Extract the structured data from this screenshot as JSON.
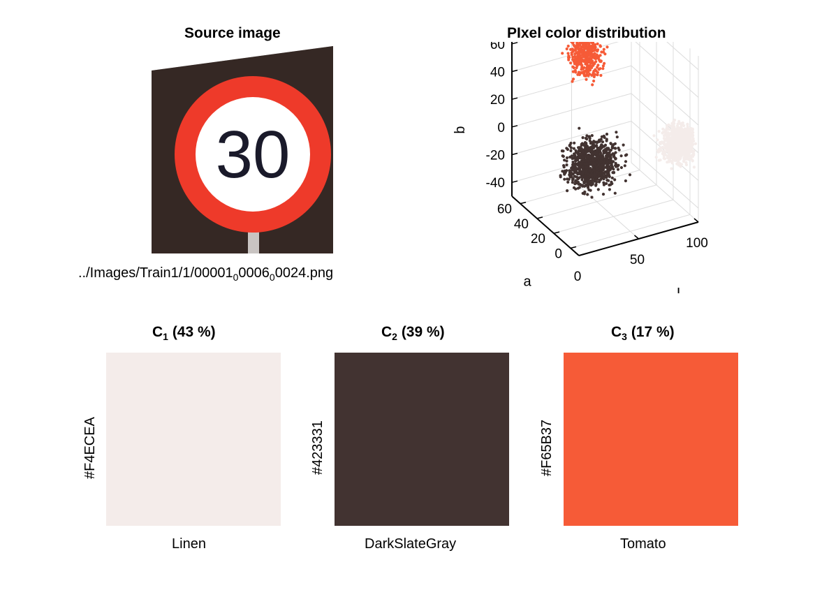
{
  "source_image": {
    "title": "Source image",
    "filename_parts": [
      "../Images/Train1/1/00001",
      "0",
      "0006",
      "0",
      "0024.png"
    ],
    "sign_number": "30"
  },
  "chart_data": [
    {
      "type": "scatter",
      "title": "PIxel color distribution",
      "axes": {
        "x": {
          "label": "L",
          "range": [
            0,
            100
          ],
          "ticks": [
            "0",
            "50",
            "100"
          ],
          "tick_values": [
            0,
            50,
            100
          ]
        },
        "y": {
          "label": "a",
          "range": [
            -10,
            70
          ],
          "ticks": [
            "0",
            "20",
            "40",
            "60"
          ],
          "tick_values": [
            0,
            20,
            40,
            60
          ]
        },
        "z": {
          "label": "b",
          "range": [
            -50,
            70
          ],
          "ticks": [
            "-40",
            "-20",
            "0",
            "20",
            "40",
            "60"
          ],
          "tick_values": [
            -40,
            -20,
            0,
            20,
            40,
            60
          ]
        }
      },
      "grid": true,
      "series": [
        {
          "color": "#F4ECEA",
          "center": {
            "L": 93,
            "a": 2,
            "b": 2
          },
          "spread": {
            "L": 7,
            "a": 4,
            "b": 6
          },
          "points": 900
        },
        {
          "color": "#423331",
          "center": {
            "L": 22,
            "a": 5,
            "b": 3
          },
          "spread": {
            "L": 10,
            "a": 5,
            "b": 8
          },
          "points": 900
        },
        {
          "color": "#F65B37",
          "center": {
            "L": 55,
            "a": 60,
            "b": 45
          },
          "spread": {
            "L": 6,
            "a": 6,
            "b": 8
          },
          "points": 400
        }
      ]
    },
    {
      "type": "bar",
      "categories": [
        "C1",
        "C2",
        "C3"
      ],
      "values": [
        43,
        39,
        17
      ],
      "unit": "%"
    }
  ],
  "clusters": [
    {
      "base": "C",
      "index": "1",
      "percent_text": "(43 %)",
      "hex": "#F4ECEA",
      "name": "Linen"
    },
    {
      "base": "C",
      "index": "2",
      "percent_text": "(39 %)",
      "hex": "#423331",
      "name": "DarkSlateGray"
    },
    {
      "base": "C",
      "index": "3",
      "percent_text": "(17 %)",
      "hex": "#F65B37",
      "name": "Tomato"
    }
  ]
}
